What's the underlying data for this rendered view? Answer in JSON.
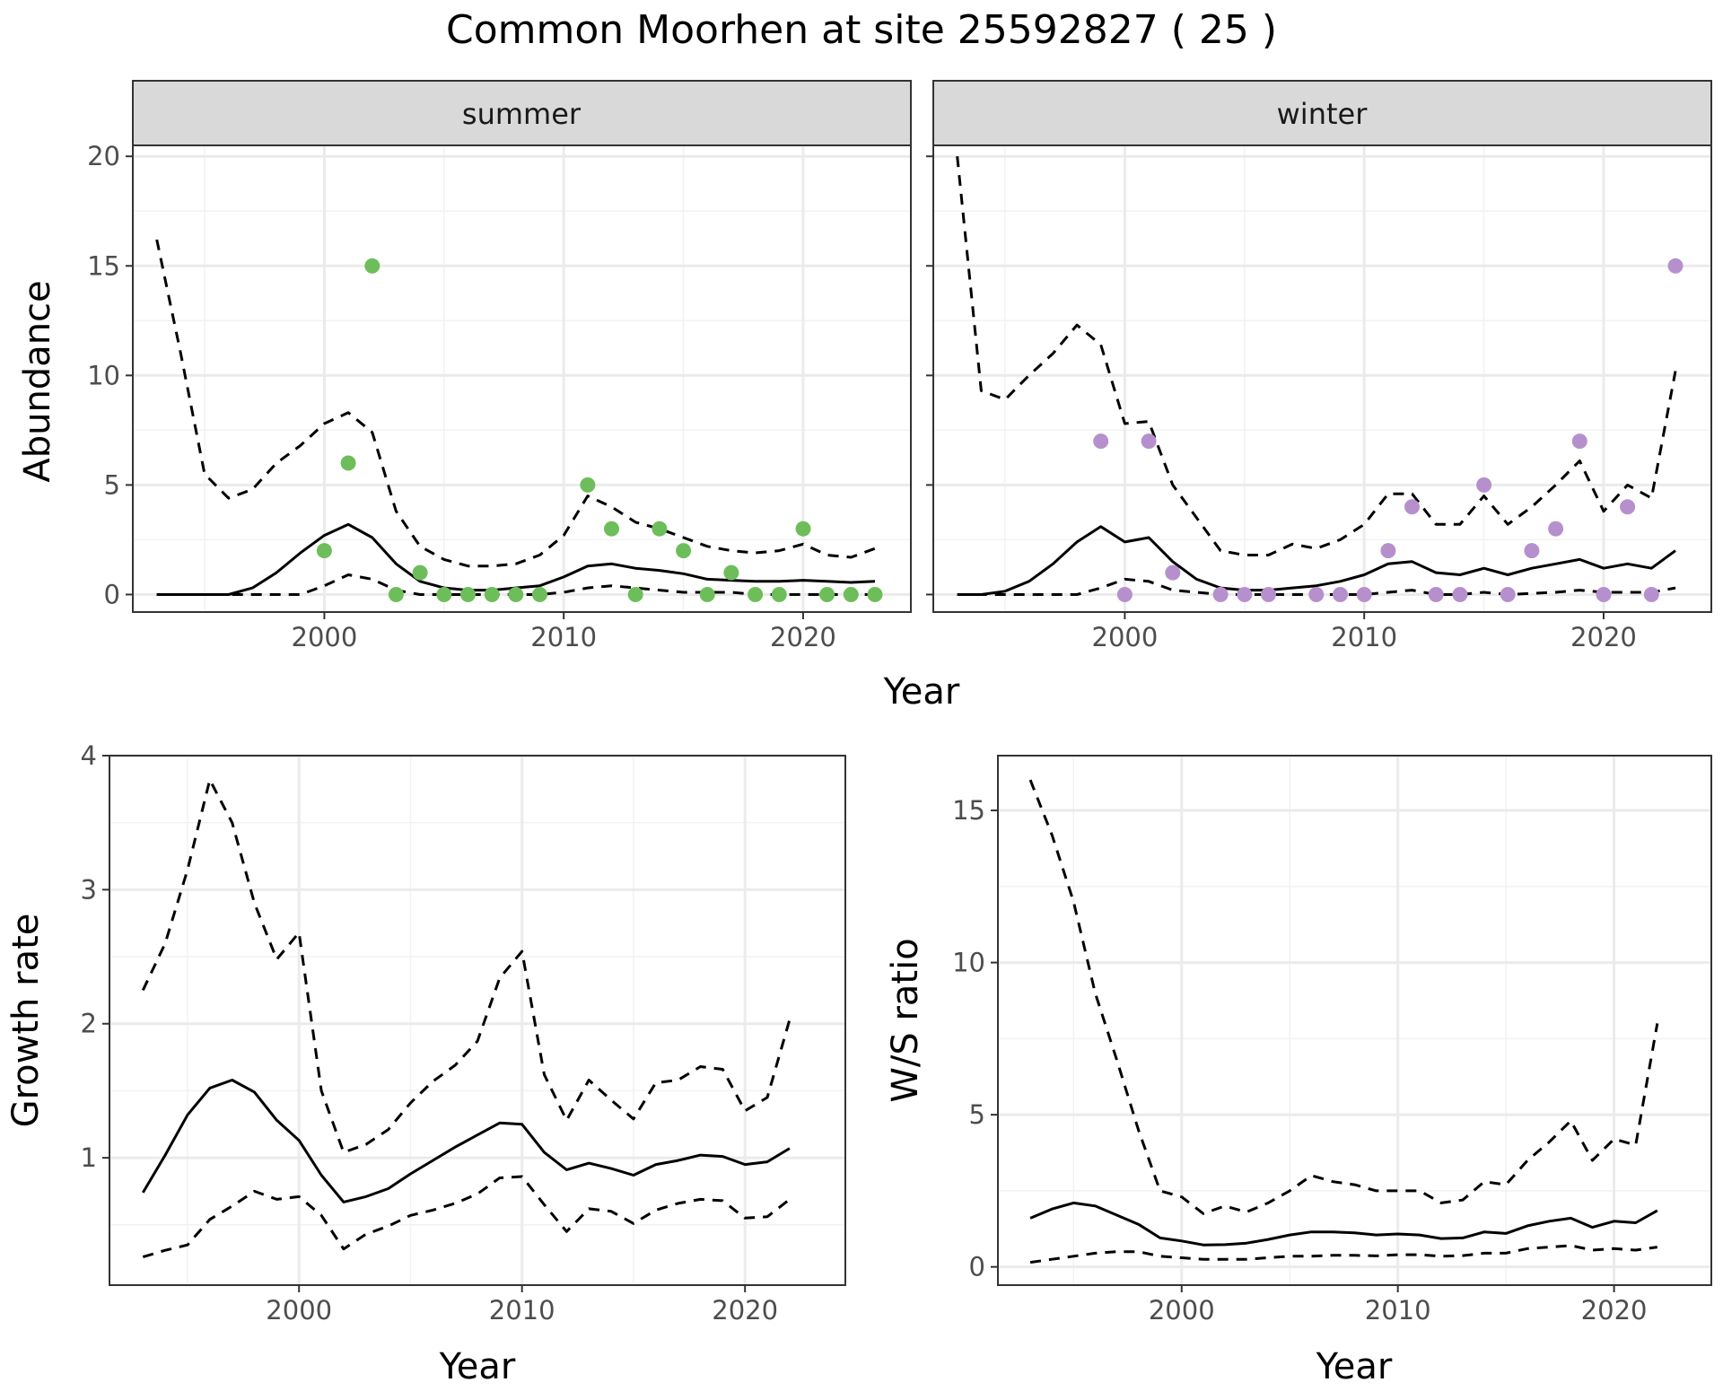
{
  "title": "Common Moorhen at site 25592827 ( 25 )",
  "colors": {
    "summer_points": "#6DBE5B",
    "winter_points": "#B690CC",
    "lines": "#000000",
    "strip_fill": "#D9D9D9",
    "grid": "#EBEBEB"
  },
  "chart_data": [
    {
      "type": "scatter",
      "facet": "summer",
      "xlabel": "Year",
      "ylabel": "Abundance",
      "xlim": [
        1992,
        2024.5
      ],
      "ylim": [
        -0.8,
        20.5
      ],
      "xticks": [
        2000,
        2010,
        2020
      ],
      "yticks": [
        0,
        5,
        10,
        15,
        20
      ],
      "grid": true,
      "points": {
        "x": [
          2000,
          2001,
          2002,
          2003,
          2004,
          2005,
          2006,
          2007,
          2008,
          2009,
          2011,
          2012,
          2013,
          2014,
          2015,
          2016,
          2017,
          2018,
          2019,
          2020,
          2021,
          2022,
          2023
        ],
        "y": [
          2,
          6,
          15,
          0,
          1,
          0,
          0,
          0,
          0,
          0,
          5,
          3,
          0,
          3,
          2,
          0,
          1,
          0,
          0,
          3,
          0,
          0,
          0
        ]
      },
      "series": [
        {
          "style": "solid",
          "x": [
            1993,
            1994,
            1995,
            1996,
            1997,
            1998,
            1999,
            2000,
            2001,
            2002,
            2003,
            2004,
            2005,
            2006,
            2007,
            2008,
            2009,
            2010,
            2011,
            2012,
            2013,
            2014,
            2015,
            2016,
            2017,
            2018,
            2019,
            2020,
            2021,
            2022,
            2023
          ],
          "y": [
            0,
            0,
            0,
            0,
            0.3,
            1,
            1.9,
            2.7,
            3.2,
            2.6,
            1.4,
            0.6,
            0.3,
            0.2,
            0.2,
            0.3,
            0.4,
            0.8,
            1.3,
            1.4,
            1.2,
            1.1,
            0.95,
            0.7,
            0.65,
            0.6,
            0.6,
            0.65,
            0.6,
            0.55,
            0.6
          ]
        },
        {
          "style": "dashed",
          "x": [
            1993,
            1994,
            1995,
            1996,
            1997,
            1998,
            1999,
            2000,
            2001,
            2002,
            2003,
            2004,
            2005,
            2006,
            2007,
            2008,
            2009,
            2010,
            2011,
            2012,
            2013,
            2014,
            2015,
            2016,
            2017,
            2018,
            2019,
            2020,
            2021,
            2022,
            2023
          ],
          "y": [
            16.2,
            11,
            5.5,
            4.4,
            4.8,
            6,
            6.8,
            7.8,
            8.3,
            7.4,
            3.8,
            2.2,
            1.6,
            1.3,
            1.3,
            1.4,
            1.8,
            2.7,
            4.5,
            4,
            3.3,
            3,
            2.6,
            2.2,
            2,
            1.9,
            2,
            2.3,
            1.8,
            1.7,
            2.1
          ]
        },
        {
          "style": "dashed",
          "x": [
            1993,
            1994,
            1995,
            1996,
            1997,
            1998,
            1999,
            2000,
            2001,
            2002,
            2003,
            2004,
            2005,
            2006,
            2007,
            2008,
            2009,
            2010,
            2011,
            2012,
            2013,
            2014,
            2015,
            2016,
            2017,
            2018,
            2019,
            2020,
            2021,
            2022,
            2023
          ],
          "y": [
            0,
            0,
            0,
            0,
            0,
            0,
            0,
            0.4,
            0.9,
            0.7,
            0.2,
            0,
            0,
            0,
            0,
            0,
            0,
            0.1,
            0.3,
            0.4,
            0.3,
            0.2,
            0.1,
            0.1,
            0.1,
            0,
            0,
            0,
            0,
            0,
            0
          ]
        }
      ]
    },
    {
      "type": "scatter",
      "facet": "winter",
      "xlabel": "Year",
      "ylabel": "Abundance",
      "xlim": [
        1992,
        2024.5
      ],
      "ylim": [
        -0.8,
        20.5
      ],
      "xticks": [
        2000,
        2010,
        2020
      ],
      "yticks": [
        0,
        5,
        10,
        15,
        20
      ],
      "grid": true,
      "points": {
        "x": [
          1999,
          2000,
          2001,
          2002,
          2004,
          2005,
          2006,
          2008,
          2009,
          2010,
          2011,
          2012,
          2013,
          2014,
          2015,
          2016,
          2017,
          2018,
          2019,
          2020,
          2021,
          2022,
          2023
        ],
        "y": [
          7,
          0,
          7,
          1,
          0,
          0,
          0,
          0,
          0,
          0,
          2,
          4,
          0,
          0,
          5,
          0,
          2,
          3,
          7,
          0,
          4,
          0,
          15
        ]
      },
      "series": [
        {
          "style": "solid",
          "x": [
            1993,
            1994,
            1995,
            1996,
            1997,
            1998,
            1999,
            2000,
            2001,
            2002,
            2003,
            2004,
            2005,
            2006,
            2007,
            2008,
            2009,
            2010,
            2011,
            2012,
            2013,
            2014,
            2015,
            2016,
            2017,
            2018,
            2019,
            2020,
            2021,
            2022,
            2023
          ],
          "y": [
            0,
            0,
            0.15,
            0.6,
            1.4,
            2.4,
            3.1,
            2.4,
            2.6,
            1.5,
            0.7,
            0.3,
            0.2,
            0.2,
            0.3,
            0.4,
            0.6,
            0.9,
            1.4,
            1.5,
            1,
            0.9,
            1.2,
            0.9,
            1.2,
            1.4,
            1.6,
            1.2,
            1.4,
            1.2,
            2
          ]
        },
        {
          "style": "dashed",
          "x": [
            1993,
            1994,
            1995,
            1996,
            1997,
            1998,
            1999,
            2000,
            2001,
            2002,
            2003,
            2004,
            2005,
            2006,
            2007,
            2008,
            2009,
            2010,
            2011,
            2012,
            2013,
            2014,
            2015,
            2016,
            2017,
            2018,
            2019,
            2020,
            2021,
            2022,
            2023
          ],
          "y": [
            20,
            9.3,
            8.9,
            10,
            11,
            12.3,
            11.4,
            7.8,
            7.9,
            5,
            3.5,
            2,
            1.8,
            1.8,
            2.3,
            2.1,
            2.5,
            3.2,
            4.6,
            4.6,
            3.2,
            3.2,
            4.5,
            3.2,
            4,
            5,
            6.1,
            3.8,
            5,
            4.4,
            10.2
          ]
        },
        {
          "style": "dashed",
          "x": [
            1993,
            1994,
            1995,
            1996,
            1997,
            1998,
            1999,
            2000,
            2001,
            2002,
            2003,
            2004,
            2005,
            2006,
            2007,
            2008,
            2009,
            2010,
            2011,
            2012,
            2013,
            2014,
            2015,
            2016,
            2017,
            2018,
            2019,
            2020,
            2021,
            2022,
            2023
          ],
          "y": [
            0,
            0,
            0,
            0,
            0,
            0,
            0.3,
            0.7,
            0.6,
            0.2,
            0.1,
            0,
            0,
            0,
            0,
            0,
            0,
            0,
            0.1,
            0.2,
            0,
            0,
            0.1,
            0,
            0.05,
            0.1,
            0.2,
            0.1,
            0.1,
            0.1,
            0.3
          ]
        }
      ]
    },
    {
      "type": "line",
      "xlabel": "Year",
      "ylabel": "Growth rate",
      "xlim": [
        1991.5,
        2024.5
      ],
      "ylim": [
        0.05,
        4.0
      ],
      "xticks": [
        2000,
        2010,
        2020
      ],
      "yticks": [
        1,
        2,
        3,
        4
      ],
      "grid": true,
      "series": [
        {
          "style": "solid",
          "x": [
            1993,
            1994,
            1995,
            1996,
            1997,
            1998,
            1999,
            2000,
            2001,
            2002,
            2003,
            2004,
            2005,
            2006,
            2007,
            2008,
            2009,
            2010,
            2011,
            2012,
            2013,
            2014,
            2015,
            2016,
            2017,
            2018,
            2019,
            2020,
            2021,
            2022
          ],
          "y": [
            0.74,
            1.02,
            1.32,
            1.52,
            1.58,
            1.49,
            1.28,
            1.13,
            0.87,
            0.67,
            0.71,
            0.77,
            0.88,
            0.98,
            1.08,
            1.17,
            1.26,
            1.25,
            1.04,
            0.91,
            0.96,
            0.92,
            0.87,
            0.95,
            0.98,
            1.02,
            1.01,
            0.95,
            0.97,
            1.07
          ]
        },
        {
          "style": "dashed",
          "x": [
            1993,
            1994,
            1995,
            1996,
            1997,
            1998,
            1999,
            2000,
            2001,
            2002,
            2003,
            2004,
            2005,
            2006,
            2007,
            2008,
            2009,
            2010,
            2011,
            2012,
            2013,
            2014,
            2015,
            2016,
            2017,
            2018,
            2019,
            2020,
            2021,
            2022
          ],
          "y": [
            2.25,
            2.6,
            3.15,
            3.82,
            3.5,
            2.9,
            2.48,
            2.68,
            1.5,
            1.04,
            1.1,
            1.21,
            1.41,
            1.57,
            1.69,
            1.87,
            2.34,
            2.54,
            1.62,
            1.28,
            1.58,
            1.43,
            1.29,
            1.56,
            1.58,
            1.68,
            1.66,
            1.35,
            1.45,
            2.03
          ]
        },
        {
          "style": "dashed",
          "x": [
            1993,
            1994,
            1995,
            1996,
            1997,
            1998,
            1999,
            2000,
            2001,
            2002,
            2003,
            2004,
            2005,
            2006,
            2007,
            2008,
            2009,
            2010,
            2011,
            2012,
            2013,
            2014,
            2015,
            2016,
            2017,
            2018,
            2019,
            2020,
            2021,
            2022
          ],
          "y": [
            0.26,
            0.31,
            0.35,
            0.54,
            0.64,
            0.75,
            0.69,
            0.71,
            0.57,
            0.32,
            0.43,
            0.49,
            0.57,
            0.61,
            0.66,
            0.73,
            0.85,
            0.86,
            0.65,
            0.45,
            0.62,
            0.6,
            0.51,
            0.61,
            0.66,
            0.69,
            0.68,
            0.55,
            0.56,
            0.69
          ]
        }
      ]
    },
    {
      "type": "line",
      "xlabel": "Year",
      "ylabel": "W/S ratio",
      "xlim": [
        1991.5,
        2024.5
      ],
      "ylim": [
        -0.6,
        16.8
      ],
      "xticks": [
        2000,
        2010,
        2020
      ],
      "yticks": [
        0,
        5,
        10,
        15
      ],
      "grid": true,
      "series": [
        {
          "style": "solid",
          "x": [
            1993,
            1994,
            1995,
            1996,
            1997,
            1998,
            1999,
            2000,
            2001,
            2002,
            2003,
            2004,
            2005,
            2006,
            2007,
            2008,
            2009,
            2010,
            2011,
            2012,
            2013,
            2014,
            2015,
            2016,
            2017,
            2018,
            2019,
            2020,
            2021,
            2022
          ],
          "y": [
            1.6,
            1.9,
            2.1,
            2,
            1.7,
            1.4,
            0.95,
            0.85,
            0.72,
            0.73,
            0.78,
            0.9,
            1.05,
            1.15,
            1.15,
            1.12,
            1.05,
            1.08,
            1.05,
            0.93,
            0.95,
            1.15,
            1.1,
            1.35,
            1.5,
            1.6,
            1.3,
            1.5,
            1.45,
            1.85
          ]
        },
        {
          "style": "dashed",
          "x": [
            1993,
            1994,
            1995,
            1996,
            1997,
            1998,
            1999,
            2000,
            2001,
            2002,
            2003,
            2004,
            2005,
            2006,
            2007,
            2008,
            2009,
            2010,
            2011,
            2012,
            2013,
            2014,
            2015,
            2016,
            2017,
            2018,
            2019,
            2020,
            2021,
            2022
          ],
          "y": [
            16,
            14.2,
            12,
            9,
            6.8,
            4.5,
            2.5,
            2.3,
            1.75,
            2,
            1.8,
            2.1,
            2.5,
            3,
            2.8,
            2.7,
            2.5,
            2.5,
            2.5,
            2.1,
            2.2,
            2.8,
            2.7,
            3.5,
            4.1,
            4.8,
            3.5,
            4.2,
            4,
            8
          ]
        },
        {
          "style": "dashed",
          "x": [
            1993,
            1994,
            1995,
            1996,
            1997,
            1998,
            1999,
            2000,
            2001,
            2002,
            2003,
            2004,
            2005,
            2006,
            2007,
            2008,
            2009,
            2010,
            2011,
            2012,
            2013,
            2014,
            2015,
            2016,
            2017,
            2018,
            2019,
            2020,
            2021,
            2022
          ],
          "y": [
            0.15,
            0.25,
            0.35,
            0.45,
            0.5,
            0.5,
            0.35,
            0.3,
            0.25,
            0.25,
            0.25,
            0.3,
            0.35,
            0.35,
            0.38,
            0.38,
            0.36,
            0.4,
            0.4,
            0.35,
            0.37,
            0.45,
            0.45,
            0.6,
            0.65,
            0.7,
            0.55,
            0.6,
            0.55,
            0.65
          ]
        }
      ]
    }
  ],
  "strips": [
    "summer",
    "winter"
  ],
  "shared_xlabel": "Year"
}
